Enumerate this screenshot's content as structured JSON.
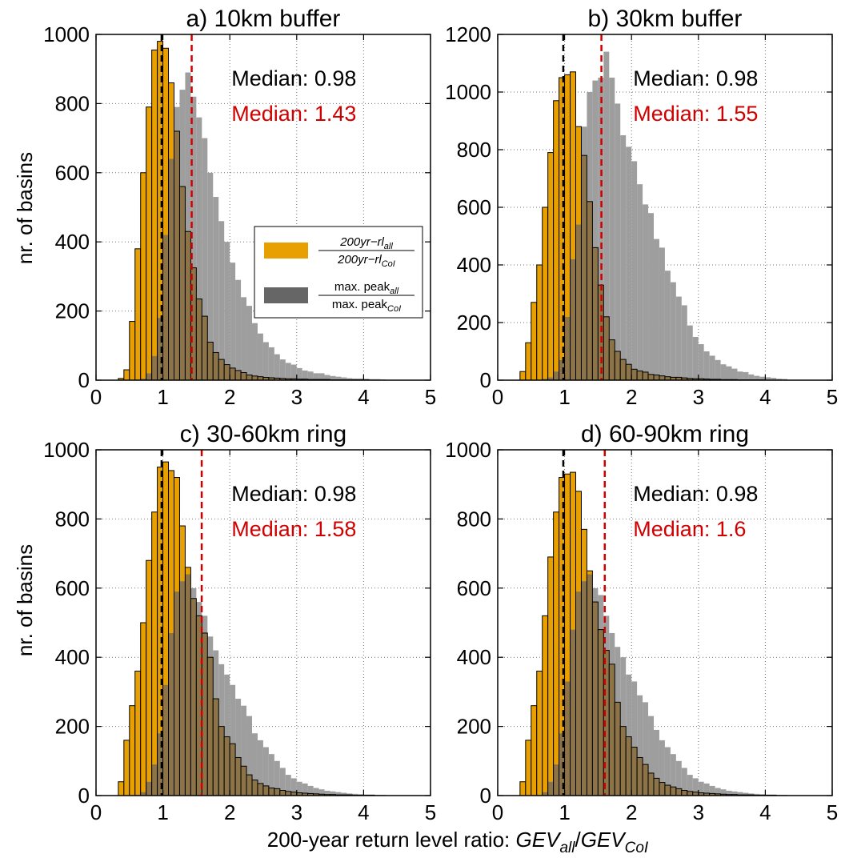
{
  "figure": {
    "ylabel": "nr. of basins",
    "xlabel_prefix": "200-year return level ratio: ",
    "xlabel_num_main": "GEV",
    "xlabel_num_sub": "all",
    "xlabel_slash": "/",
    "xlabel_den_main": "GEV",
    "xlabel_den_sub": "CoI"
  },
  "legend": {
    "entries": [
      {
        "color": "#e8a000",
        "num_main": "200yr−rl",
        "num_sub": "all",
        "den_main": "200yr−rl",
        "den_sub": "CoI"
      },
      {
        "color": "#666666",
        "num_main": "max. peak",
        "num_sub": "all",
        "den_main": "max. peak",
        "den_sub": "CoI"
      }
    ]
  },
  "colors": {
    "rl_ratio": "#e8a000",
    "rl_ratio_overlap": "#8c7448",
    "peak_ratio": "#9e9e9e",
    "median_rl": "#000000",
    "median_peak": "#d00000"
  },
  "chart_data": [
    {
      "type": "bar",
      "title": "a) 10km buffer",
      "xlim": [
        0,
        5
      ],
      "ylim": [
        0,
        1000
      ],
      "xticks": [
        0,
        1,
        2,
        3,
        4,
        5
      ],
      "yticks": [
        0,
        200,
        400,
        600,
        800,
        1000
      ],
      "grid": true,
      "bin_width": 0.0833,
      "bin_start": 0.25,
      "medians": [
        {
          "label": "Median: 0.98",
          "value": 0.98,
          "color": "#000000"
        },
        {
          "label": "Median: 1.43",
          "value": 1.43,
          "color": "#d00000"
        }
      ],
      "series": [
        {
          "values": [
            0,
            5,
            30,
            170,
            380,
            600,
            790,
            955,
            980,
            960,
            860,
            720,
            560,
            430,
            325,
            235,
            185,
            110,
            80,
            60,
            45,
            35,
            28,
            22,
            15,
            12,
            10,
            8,
            7,
            6,
            5,
            4,
            4,
            3,
            3,
            2,
            2,
            2,
            2,
            1,
            1,
            1,
            1,
            1,
            1,
            1,
            0,
            0,
            0
          ]
        },
        {
          "values": [
            0,
            0,
            0,
            0,
            2,
            5,
            20,
            70,
            180,
            420,
            640,
            790,
            840,
            890,
            820,
            760,
            700,
            600,
            530,
            460,
            400,
            340,
            290,
            240,
            215,
            165,
            135,
            110,
            95,
            75,
            60,
            50,
            45,
            35,
            28,
            25,
            20,
            20,
            15,
            12,
            10,
            8,
            6,
            5,
            5,
            4,
            3,
            3,
            2
          ]
        }
      ],
      "legend_in_panel": true
    },
    {
      "type": "bar",
      "title": "b) 30km buffer",
      "xlim": [
        0,
        5
      ],
      "ylim": [
        0,
        1200
      ],
      "xticks": [
        0,
        1,
        2,
        3,
        4,
        5
      ],
      "yticks": [
        0,
        200,
        400,
        600,
        800,
        1000,
        1200
      ],
      "grid": true,
      "bin_width": 0.0833,
      "bin_start": 0.25,
      "medians": [
        {
          "label": "Median: 0.98",
          "value": 0.98,
          "color": "#000000"
        },
        {
          "label": "Median: 1.55",
          "value": 1.55,
          "color": "#d00000"
        }
      ],
      "series": [
        {
          "values": [
            0,
            30,
            130,
            270,
            400,
            600,
            790,
            970,
            1050,
            1060,
            1070,
            880,
            780,
            620,
            460,
            330,
            220,
            140,
            100,
            72,
            55,
            38,
            32,
            28,
            20,
            18,
            15,
            12,
            10,
            10,
            8,
            6,
            5,
            5,
            4,
            3,
            3,
            2,
            2,
            2,
            1,
            1,
            1,
            1,
            1,
            0,
            0,
            0,
            0
          ]
        },
        {
          "values": [
            0,
            0,
            0,
            0,
            0,
            5,
            10,
            30,
            70,
            220,
            420,
            540,
            880,
            1000,
            1040,
            1050,
            1140,
            1050,
            960,
            850,
            810,
            760,
            680,
            610,
            580,
            490,
            460,
            380,
            340,
            290,
            260,
            190,
            150,
            125,
            100,
            85,
            70,
            55,
            48,
            40,
            30,
            28,
            20,
            15,
            12,
            10,
            8,
            5,
            4
          ]
        }
      ],
      "legend_in_panel": false
    },
    {
      "type": "bar",
      "title": "c) 30-60km ring",
      "xlim": [
        0,
        5
      ],
      "ylim": [
        0,
        1000
      ],
      "xticks": [
        0,
        1,
        2,
        3,
        4,
        5
      ],
      "yticks": [
        0,
        200,
        400,
        600,
        800,
        1000
      ],
      "grid": true,
      "bin_width": 0.0833,
      "bin_start": 0.25,
      "medians": [
        {
          "label": "Median: 0.98",
          "value": 0.98,
          "color": "#000000"
        },
        {
          "label": "Median: 1.58",
          "value": 1.58,
          "color": "#d00000"
        }
      ],
      "series": [
        {
          "values": [
            0,
            40,
            160,
            260,
            360,
            500,
            680,
            820,
            950,
            965,
            940,
            920,
            780,
            660,
            570,
            520,
            470,
            400,
            280,
            200,
            170,
            150,
            110,
            85,
            60,
            45,
            35,
            28,
            22,
            20,
            15,
            12,
            10,
            8,
            7,
            6,
            5,
            4,
            3,
            3,
            2,
            2,
            2,
            1,
            1,
            1,
            1,
            0,
            0
          ]
        },
        {
          "values": [
            0,
            0,
            0,
            0,
            2,
            10,
            40,
            90,
            180,
            320,
            470,
            590,
            620,
            640,
            600,
            560,
            520,
            460,
            420,
            380,
            350,
            320,
            280,
            260,
            230,
            180,
            160,
            140,
            120,
            100,
            80,
            60,
            50,
            40,
            35,
            28,
            22,
            18,
            14,
            12,
            10,
            8,
            6,
            5,
            4,
            3,
            3,
            2,
            2
          ]
        }
      ],
      "legend_in_panel": false
    },
    {
      "type": "bar",
      "title": "d) 60-90km ring",
      "xlim": [
        0,
        5
      ],
      "ylim": [
        0,
        1000
      ],
      "xticks": [
        0,
        1,
        2,
        3,
        4,
        5
      ],
      "yticks": [
        0,
        200,
        400,
        600,
        800,
        1000
      ],
      "grid": true,
      "bin_width": 0.0833,
      "bin_start": 0.25,
      "medians": [
        {
          "label": "Median: 0.98",
          "value": 0.98,
          "color": "#000000"
        },
        {
          "label": "Median: 1.6",
          "value": 1.6,
          "color": "#d00000"
        }
      ],
      "series": [
        {
          "values": [
            0,
            40,
            160,
            260,
            360,
            520,
            690,
            820,
            920,
            930,
            935,
            880,
            770,
            650,
            560,
            480,
            420,
            380,
            270,
            200,
            170,
            140,
            110,
            90,
            65,
            50,
            38,
            30,
            25,
            20,
            15,
            12,
            10,
            8,
            7,
            6,
            5,
            4,
            3,
            3,
            2,
            2,
            2,
            1,
            1,
            1,
            1,
            0,
            0
          ]
        },
        {
          "values": [
            0,
            0,
            0,
            0,
            2,
            10,
            40,
            90,
            180,
            330,
            480,
            590,
            620,
            640,
            600,
            580,
            520,
            470,
            430,
            400,
            350,
            330,
            290,
            270,
            230,
            190,
            160,
            140,
            120,
            100,
            80,
            60,
            50,
            40,
            35,
            28,
            22,
            18,
            14,
            12,
            10,
            8,
            6,
            5,
            4,
            3,
            3,
            2,
            2
          ]
        }
      ],
      "legend_in_panel": false
    }
  ]
}
